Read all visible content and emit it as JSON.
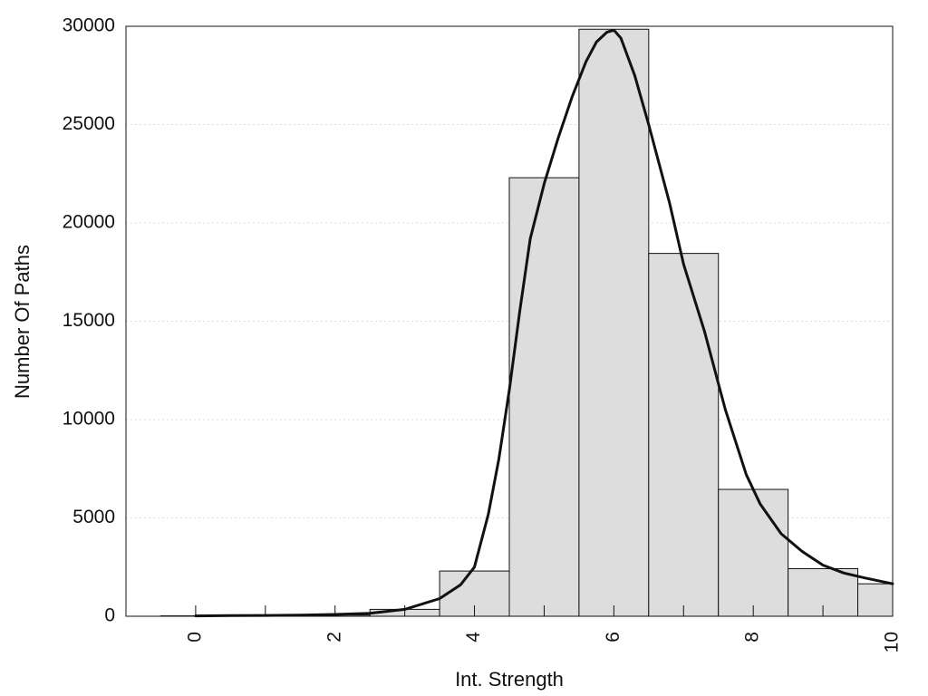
{
  "chart_data": {
    "type": "bar",
    "title": "",
    "xlabel": "Int. Strength",
    "ylabel": "Number Of Paths",
    "xlim": [
      -1,
      10
    ],
    "ylim": [
      0,
      30000
    ],
    "grid": "horizontal dotted",
    "legend": "none",
    "x_ticks": [
      0,
      2,
      4,
      6,
      8,
      10
    ],
    "x_tick_labels": [
      "0",
      "2",
      "4",
      "6",
      "8",
      "10"
    ],
    "y_ticks": [
      0,
      5000,
      10000,
      15000,
      20000,
      25000,
      30000
    ],
    "y_tick_labels": [
      "0",
      "5000",
      "10000",
      "15000",
      "20000",
      "25000",
      "30000"
    ],
    "bin_width": 1,
    "bins": [
      {
        "x": 0,
        "value": 20
      },
      {
        "x": 1,
        "value": 30
      },
      {
        "x": 2,
        "value": 60
      },
      {
        "x": 3,
        "value": 350
      },
      {
        "x": 4,
        "value": 2300
      },
      {
        "x": 5,
        "value": 22300
      },
      {
        "x": 6,
        "value": 29850
      },
      {
        "x": 7,
        "value": 18450
      },
      {
        "x": 8,
        "value": 6450
      },
      {
        "x": 9,
        "value": 2420
      },
      {
        "x": 10,
        "value": 1650
      }
    ],
    "curve": {
      "x": [
        0,
        0.5,
        1,
        1.5,
        2,
        2.5,
        3,
        3.5,
        3.8,
        4,
        4.2,
        4.35,
        4.5,
        4.65,
        4.8,
        5,
        5.2,
        5.4,
        5.6,
        5.75,
        5.9,
        6,
        6.1,
        6.3,
        6.5,
        6.8,
        7,
        7.3,
        7.6,
        7.9,
        8.1,
        8.4,
        8.7,
        9,
        9.3,
        9.6,
        10
      ],
      "y": [
        20,
        30,
        40,
        60,
        90,
        150,
        350,
        900,
        1600,
        2500,
        5200,
        8000,
        11500,
        15500,
        19200,
        22000,
        24300,
        26400,
        28200,
        29200,
        29700,
        29800,
        29400,
        27500,
        25000,
        21000,
        17900,
        14500,
        10500,
        7200,
        5700,
        4200,
        3300,
        2600,
        2200,
        1950,
        1650
      ]
    },
    "colors": {
      "bar_fill": "#dddddd",
      "bar_stroke": "#111111",
      "curve": "#111111",
      "grid": "#d9d9d9"
    }
  }
}
